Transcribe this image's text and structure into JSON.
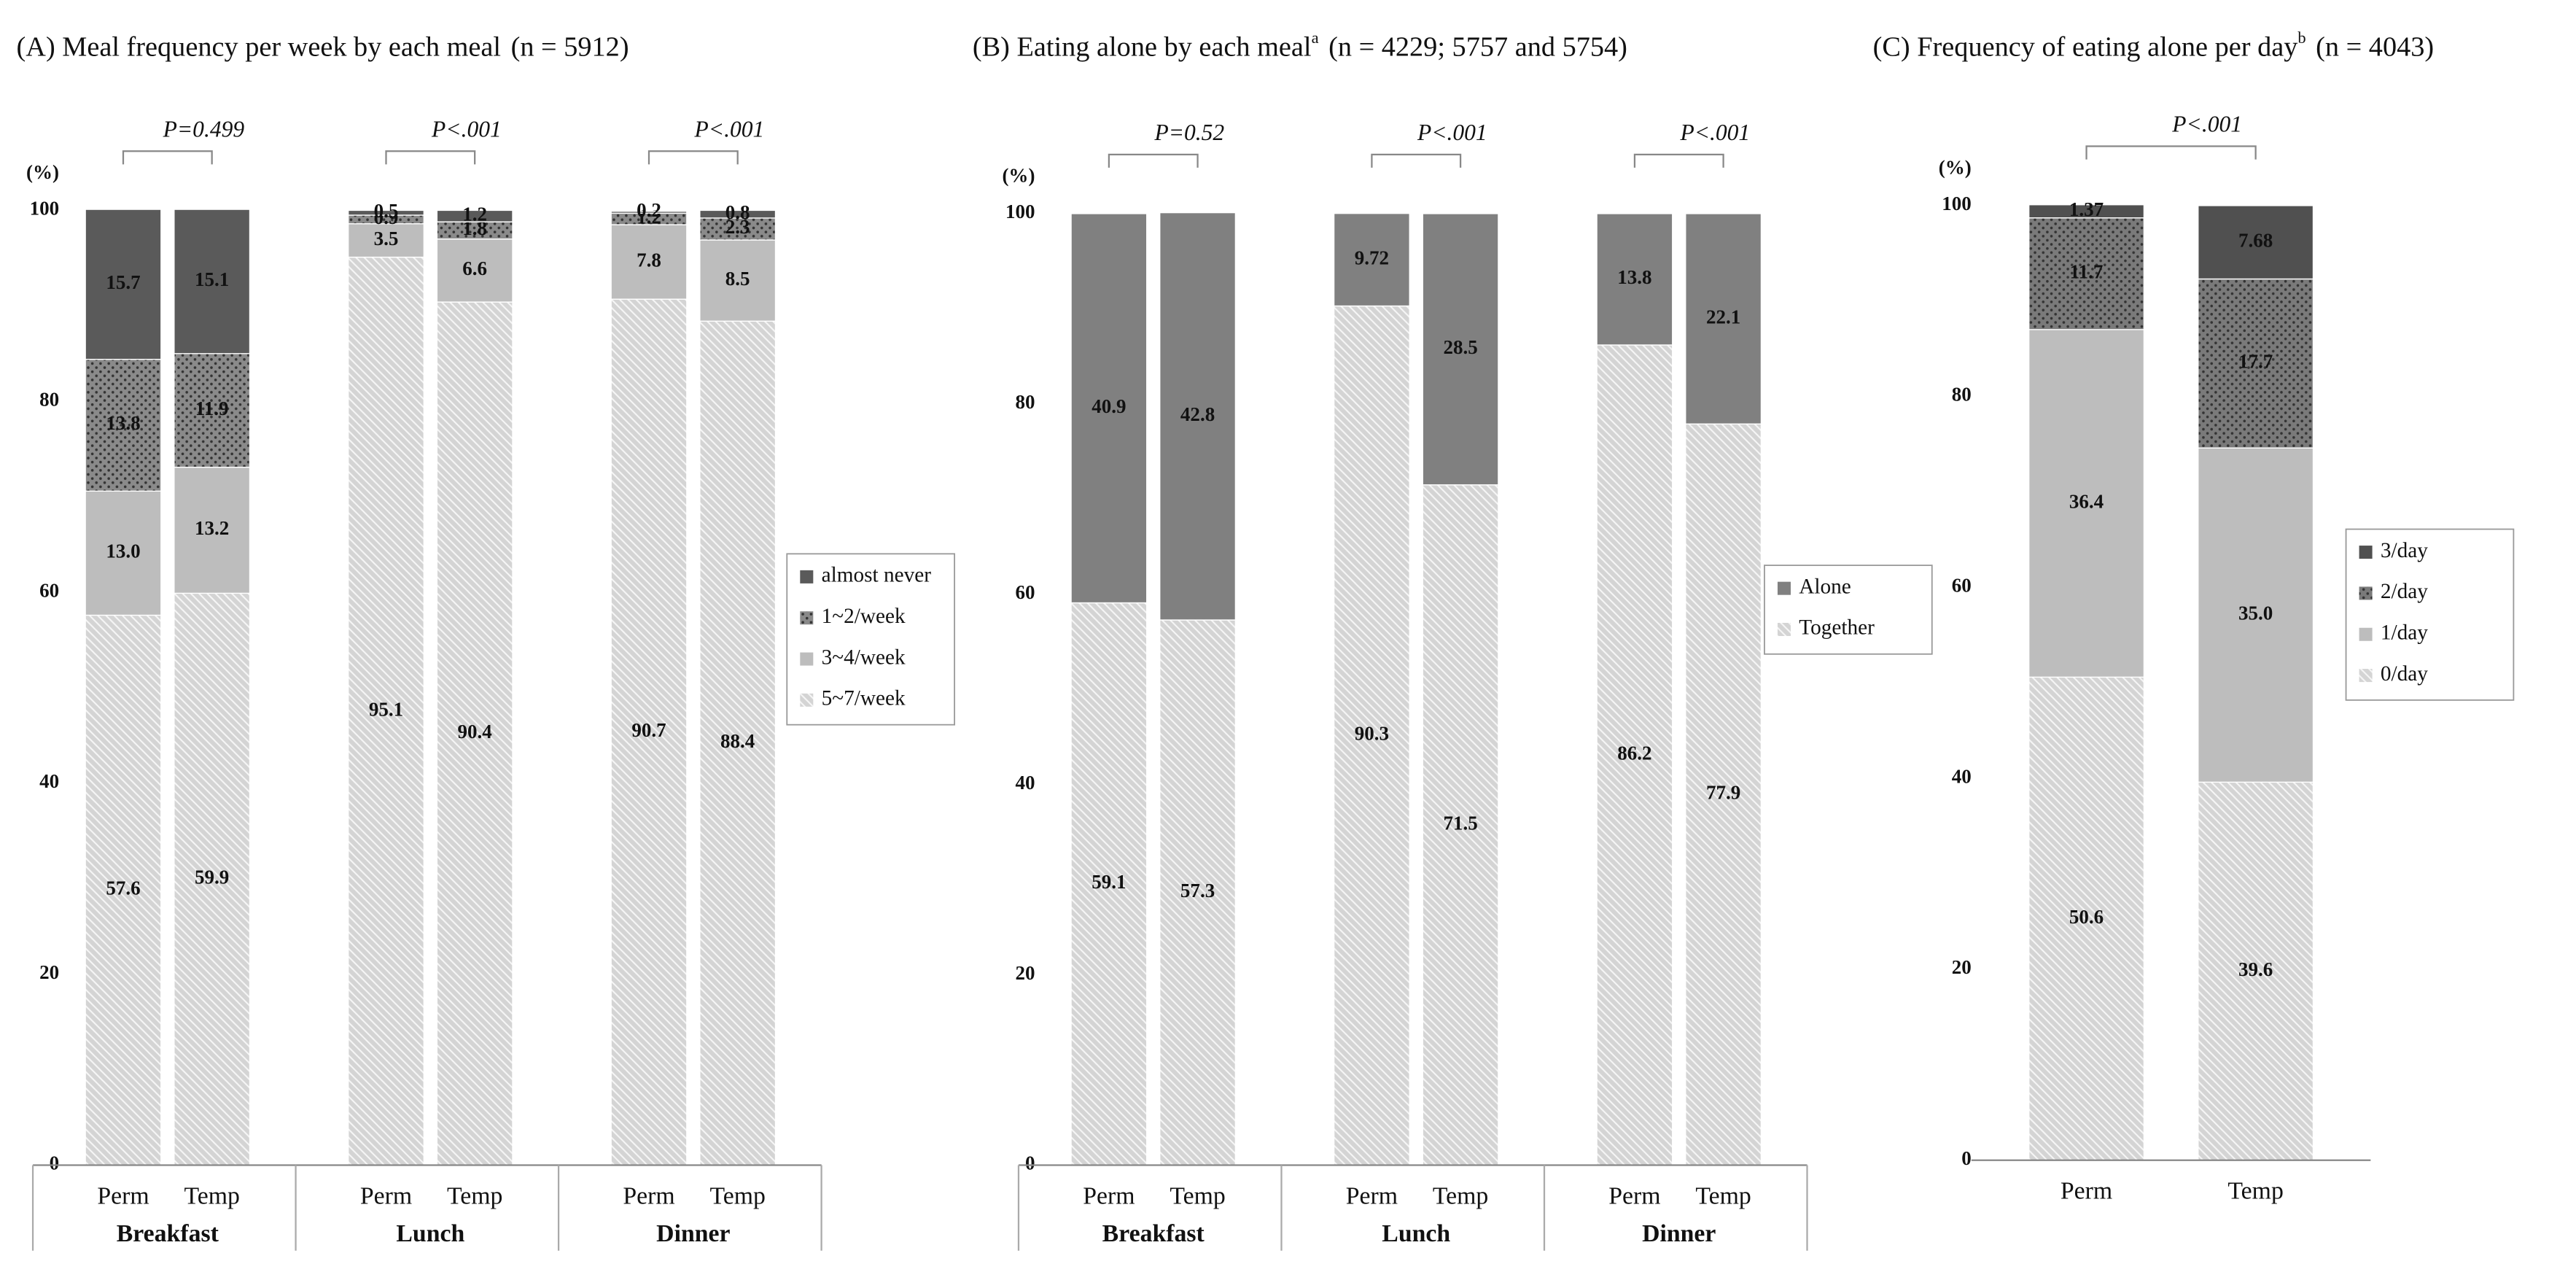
{
  "chart_data": [
    {
      "type": "stacked-bar",
      "title": "(A)  Meal frequency per week by each meal",
      "subtitle": "(n = 5912)",
      "ylabel": "(%)",
      "ylim": [
        0,
        100
      ],
      "yticks": [
        0,
        20,
        40,
        60,
        80,
        100
      ],
      "grid": false,
      "categories": [
        "Perm",
        "Temp",
        "Perm",
        "Temp",
        "Perm",
        "Temp"
      ],
      "groups": [
        "Breakfast",
        "Lunch",
        "Dinner"
      ],
      "p_values": [
        "P=0.499",
        "P<.001",
        "P<.001"
      ],
      "series": [
        {
          "name": "5~7/week",
          "color": "#d4d4d4",
          "pattern": "hatch",
          "values": [
            57.6,
            59.9,
            95.1,
            90.4,
            90.7,
            88.4
          ]
        },
        {
          "name": "3~4/week",
          "color": "#bdbdbd",
          "pattern": "none",
          "values": [
            13.0,
            13.2,
            3.5,
            6.6,
            7.8,
            8.5
          ],
          "value_labels": [
            "13.0",
            "13.2",
            "3.5",
            "6.6",
            "7.8",
            "8.5"
          ]
        },
        {
          "name": "1~2/week",
          "color": "#8a8a8a",
          "pattern": "dots",
          "values": [
            13.8,
            11.9,
            0.9,
            1.8,
            1.2,
            2.3
          ]
        },
        {
          "name": "almost never",
          "color": "#5a5a5a",
          "pattern": "none",
          "values": [
            15.7,
            15.1,
            0.5,
            1.2,
            0.2,
            0.8
          ]
        }
      ]
    },
    {
      "type": "stacked-bar",
      "title": "(B)  Eating alone by each meal",
      "title_note": "a",
      "subtitle": "(n = 4229; 5757 and 5754)",
      "ylabel": "(%)",
      "ylim": [
        0,
        100
      ],
      "yticks": [
        0,
        20,
        40,
        60,
        80,
        100
      ],
      "grid": false,
      "categories": [
        "Perm",
        "Temp",
        "Perm",
        "Temp",
        "Perm",
        "Temp"
      ],
      "groups": [
        "Breakfast",
        "Lunch",
        "Dinner"
      ],
      "p_values": [
        "P=0.52",
        "P<.001",
        "P<.001"
      ],
      "series": [
        {
          "name": "Together",
          "color": "#d4d4d4",
          "pattern": "hatch",
          "values": [
            59.1,
            57.3,
            90.3,
            71.5,
            86.2,
            77.9
          ]
        },
        {
          "name": "Alone",
          "color": "#808080",
          "pattern": "none",
          "values": [
            40.9,
            42.8,
            9.72,
            28.5,
            13.8,
            22.1
          ]
        }
      ]
    },
    {
      "type": "stacked-bar",
      "title": "(C)  Frequency of eating alone per day",
      "title_note": "b",
      "subtitle": "(n = 4043)",
      "ylabel": "(%)",
      "ylim": [
        0,
        100
      ],
      "yticks": [
        0,
        20,
        40,
        60,
        80,
        100
      ],
      "grid": false,
      "categories": [
        "Perm",
        "Temp"
      ],
      "p_values": [
        "P<.001"
      ],
      "series": [
        {
          "name": "0/day",
          "color": "#d4d4d4",
          "pattern": "hatch",
          "values": [
            50.6,
            39.6
          ]
        },
        {
          "name": "1/day",
          "color": "#bdbdbd",
          "pattern": "none",
          "values": [
            36.4,
            35.0
          ],
          "value_labels": [
            "36.4",
            "35.0"
          ]
        },
        {
          "name": "2/day",
          "color": "#7a7a7a",
          "pattern": "dots",
          "values": [
            11.7,
            17.7
          ]
        },
        {
          "name": "3/day",
          "color": "#505050",
          "pattern": "none",
          "values": [
            1.37,
            7.68
          ]
        }
      ]
    }
  ]
}
